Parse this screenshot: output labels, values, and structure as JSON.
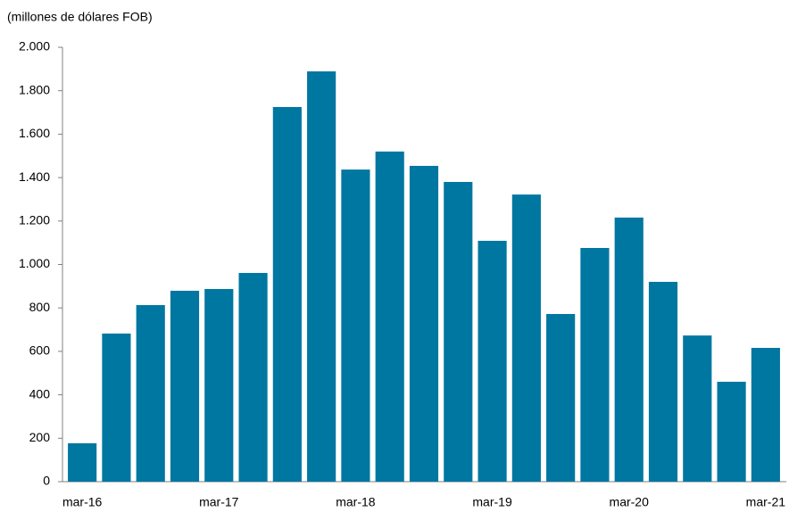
{
  "chart_data": {
    "type": "bar",
    "title": "(millones de dólares FOB)",
    "categories": [
      "mar-16",
      null,
      null,
      null,
      "mar-17",
      null,
      null,
      null,
      "mar-18",
      null,
      null,
      null,
      "mar-19",
      null,
      null,
      null,
      "mar-20",
      null,
      null,
      null,
      "mar-21"
    ],
    "values": [
      177,
      682,
      813,
      879,
      887,
      961,
      1725,
      1889,
      1437,
      1520,
      1454,
      1380,
      1109,
      1322,
      772,
      1076,
      1216,
      920,
      673,
      460,
      616
    ],
    "color": "#0077a0",
    "ylim": [
      0,
      2000
    ],
    "yticks": [
      0,
      200,
      400,
      600,
      800,
      {
        "value": 1000,
        "label": "1.000"
      },
      {
        "value": 1200,
        "label": "1.200"
      },
      {
        "value": 1400,
        "label": "1.400"
      },
      {
        "value": 1600,
        "label": "1.600"
      },
      {
        "value": 1800,
        "label": "1.800"
      },
      {
        "value": 2000,
        "label": "2.000"
      }
    ],
    "grid": false
  }
}
